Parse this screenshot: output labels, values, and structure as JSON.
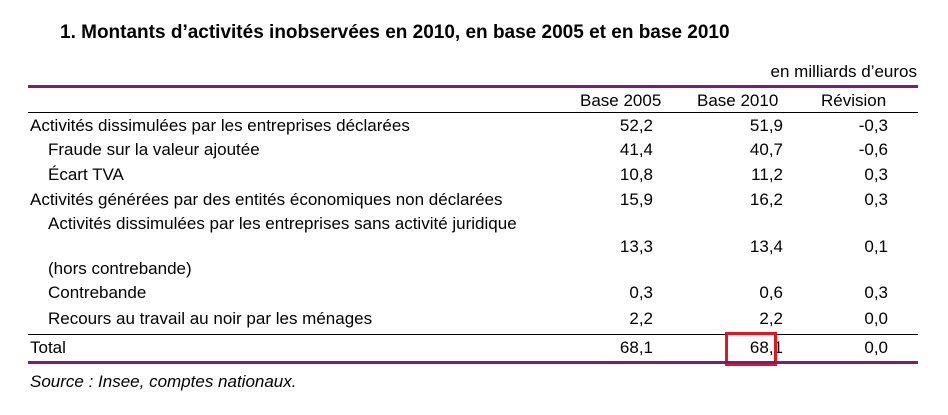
{
  "title": "1. Montants d’activités inobservées en 2010, en base 2005 et en base 2010",
  "unit": "en milliards d’euros",
  "columns": [
    "Base 2005",
    "Base 2010",
    "Révision"
  ],
  "rows": [
    {
      "label": "Activités dissimulées par les entreprises déclarées",
      "values": [
        "52,2",
        "51,9",
        "-0,3"
      ]
    },
    {
      "label": "Fraude sur la valeur ajoutée",
      "values": [
        "41,4",
        "40,7",
        "-0,6"
      ]
    },
    {
      "label": "Écart TVA",
      "values": [
        "10,8",
        "11,2",
        "0,3"
      ]
    },
    {
      "label": "Activités générées par des entités économiques non déclarées",
      "values": [
        "15,9",
        "16,2",
        "0,3"
      ]
    },
    {
      "label": "Activités dissimulées par les entreprises sans activité juridique",
      "label_cont": "(hors contrebande)",
      "values": [
        "13,3",
        "13,4",
        "0,1"
      ]
    },
    {
      "label": "Contrebande",
      "values": [
        "0,3",
        "0,6",
        "0,3"
      ]
    },
    {
      "label": "Recours au travail au noir par les ménages",
      "values": [
        "2,2",
        "2,2",
        "0,0"
      ]
    },
    {
      "label": "Total",
      "values": [
        "68,1",
        "68,1",
        "0,0"
      ]
    }
  ],
  "highlight_color": "#e3161e",
  "rule_color": "#7a1c7a",
  "source": "Source : Insee, comptes nationaux."
}
